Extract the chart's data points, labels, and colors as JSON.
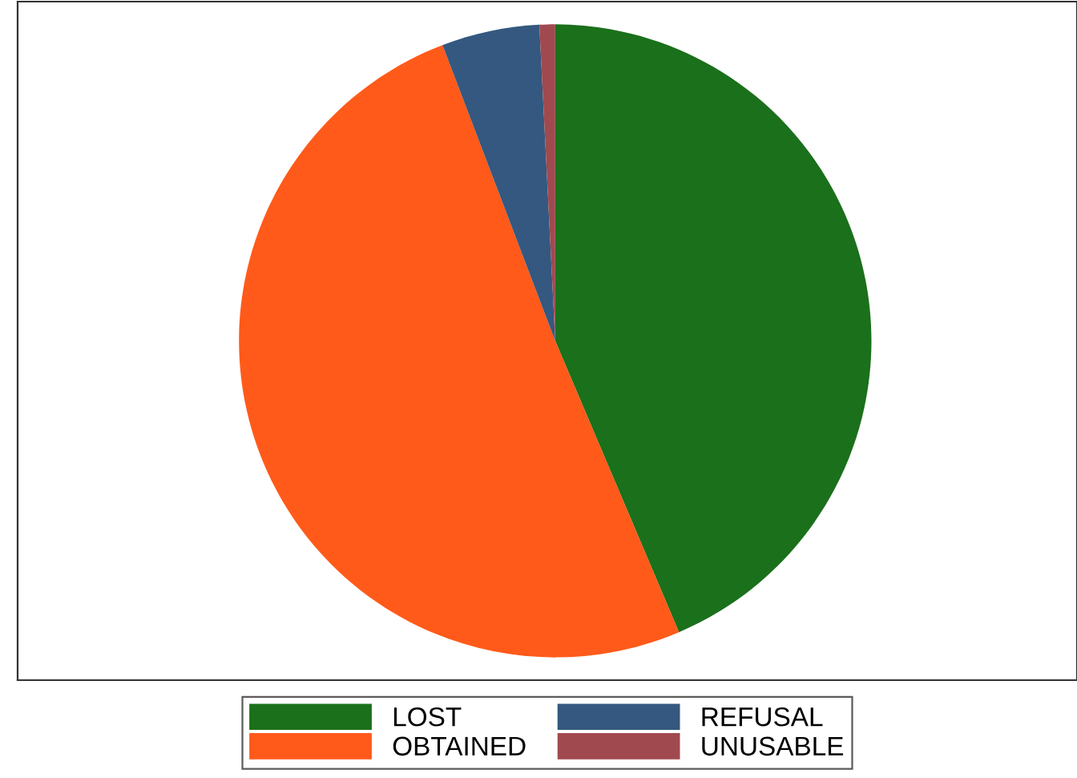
{
  "chart_data": {
    "type": "pie",
    "categories": [
      "LOST",
      "OBTAINED",
      "REFUSAL",
      "UNUSABLE"
    ],
    "values": [
      43.6,
      50.6,
      5.0,
      0.8
    ],
    "colors": [
      "#1b701b",
      "#ff5a1a",
      "#34587f",
      "#a04a4f"
    ],
    "legend": "bottom"
  }
}
